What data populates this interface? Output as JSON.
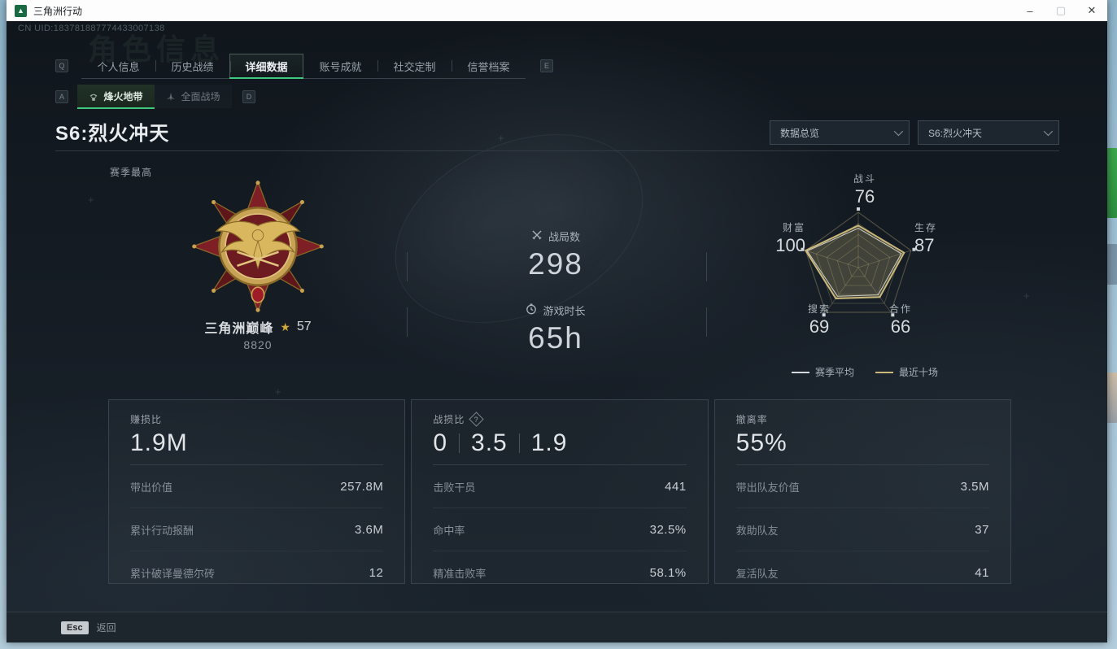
{
  "colors": {
    "accent_green": "#3ec97e",
    "gold": "#c9b87a",
    "grid_gold": "rgba(190,175,120,0.35)",
    "card_border": "#3a434d",
    "background": "#151c24"
  },
  "window": {
    "title": "三角洲行动",
    "minimize": "–",
    "maximize": "▢",
    "close": "✕"
  },
  "header": {
    "uid": "CN UID:183781887774433007138",
    "watermark": "角色信息"
  },
  "tabs": {
    "key_left": "Q",
    "key_right": "E",
    "active_index": 2,
    "items": [
      "个人信息",
      "历史战绩",
      "详细数据",
      "账号成就",
      "社交定制",
      "信誉档案"
    ]
  },
  "subtabs": {
    "key_left": "A",
    "key_right": "D",
    "active_index": 0,
    "items": [
      {
        "label": "烽火地带",
        "icon": "supply-drop-icon"
      },
      {
        "label": "全面战场",
        "icon": "battlefield-icon"
      }
    ]
  },
  "season": {
    "title": "S6:烈火冲天",
    "overview_filter": "数据总览",
    "season_filter": "S6:烈火冲天",
    "best_label": "赛季最高"
  },
  "medal": {
    "name": "三角洲巅峰",
    "star_icon": "★",
    "star_count": "57",
    "points": "8820"
  },
  "summary": {
    "battles_label": "战局数",
    "battles_value": "298",
    "playtime_label": "游戏时长",
    "playtime_value": "65h"
  },
  "chart_data": {
    "type": "radar",
    "max": 100,
    "grid": true,
    "legend_position": "bottom",
    "axes": [
      {
        "label": "战斗",
        "value": 76
      },
      {
        "label": "生存",
        "value": 87
      },
      {
        "label": "合作",
        "value": 66
      },
      {
        "label": "搜索",
        "value": 69
      },
      {
        "label": "财富",
        "value": 100
      }
    ],
    "series": [
      {
        "name": "赛季平均",
        "color": "#d5d9dc",
        "fill": "none",
        "width": 1,
        "values": [
          71,
          82,
          61,
          64,
          97
        ]
      },
      {
        "name": "最近十场",
        "color": "#c9b87a",
        "fill": "rgba(201,184,122,0.25)",
        "width": 2,
        "values": [
          76,
          87,
          66,
          69,
          100
        ]
      }
    ]
  },
  "cards": [
    {
      "title": "赚损比",
      "value": "1.9M",
      "rows": [
        {
          "label": "带出价值",
          "value": "257.8M"
        },
        {
          "label": "累计行动报酬",
          "value": "3.6M"
        },
        {
          "label": "累计破译曼德尔砖",
          "value": "12"
        }
      ]
    },
    {
      "title": "战损比",
      "help": "?",
      "value_parts": [
        "0",
        "3.5",
        "1.9"
      ],
      "rows": [
        {
          "label": "击败干员",
          "value": "441"
        },
        {
          "label": "命中率",
          "value": "32.5%"
        },
        {
          "label": "精准击败率",
          "value": "58.1%"
        }
      ]
    },
    {
      "title": "撤离率",
      "value": "55%",
      "rows": [
        {
          "label": "带出队友价值",
          "value": "3.5M"
        },
        {
          "label": "救助队友",
          "value": "37"
        },
        {
          "label": "复活队友",
          "value": "41"
        }
      ]
    }
  ],
  "footer": {
    "key": "Esc",
    "label": "返回"
  }
}
